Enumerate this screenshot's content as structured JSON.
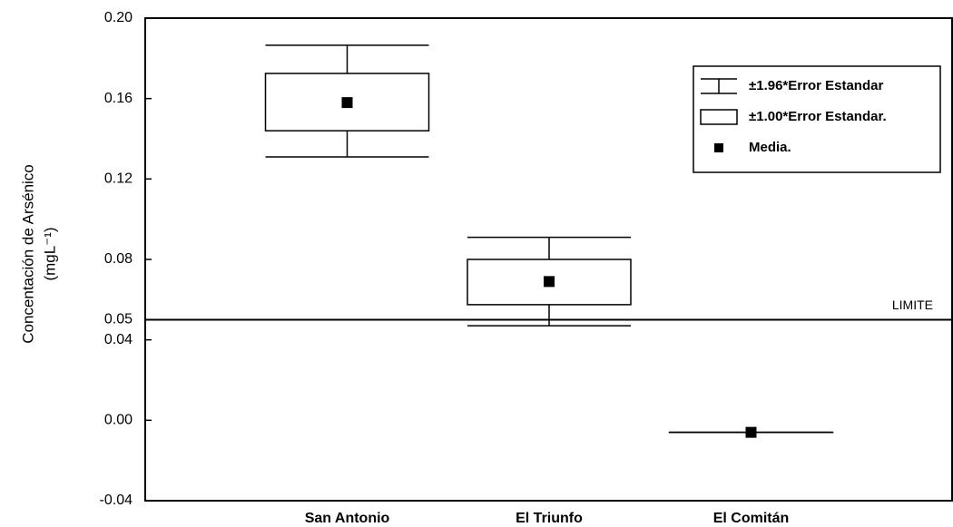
{
  "chart_data": {
    "type": "box",
    "ylabel": [
      "Concentación de Arsénico",
      "(mgL⁻¹)"
    ],
    "categories": [
      "San Antonio",
      "El Triunfo",
      "El Comitán"
    ],
    "mean": [
      0.158,
      0.069,
      -0.006
    ],
    "box_low": [
      0.144,
      0.0575,
      -0.006
    ],
    "box_high": [
      0.1725,
      0.08,
      -0.006
    ],
    "whisker_low": [
      0.131,
      0.047,
      -0.006
    ],
    "whisker_high": [
      0.1865,
      0.091,
      -0.006
    ],
    "color": "#000000",
    "ylim": [
      -0.04,
      0.2
    ],
    "yticks": [
      {
        "value": 0.2,
        "label": "0.20"
      },
      0.16,
      0.12,
      0.08,
      0.05,
      0.04,
      {
        "value": 0,
        "label": "0.00"
      },
      -0.04
    ],
    "reference_line": {
      "value": 0.05,
      "label": "LIMITE"
    },
    "legend": {
      "position": "top-right",
      "entries": [
        "±1.96*Error Estandar",
        "±1.00*Error Estandar.",
        "Media."
      ]
    }
  }
}
